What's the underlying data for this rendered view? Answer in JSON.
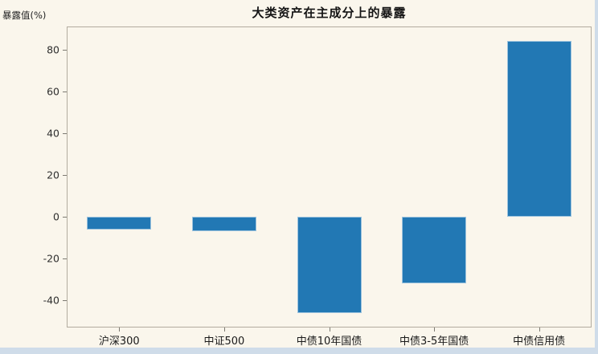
{
  "chart_data": {
    "type": "bar",
    "title": "大类资产在主成分上的暴露",
    "ylabel": "暴露值(%)",
    "xlabel": "",
    "categories": [
      "沪深300",
      "中证500",
      "中债10年国债",
      "中债3-5年国债",
      "中债信用债"
    ],
    "values": [
      -6,
      -7,
      -46,
      -32,
      84
    ],
    "yticks": [
      80,
      60,
      40,
      20,
      0,
      -20,
      -40
    ],
    "ylim": [
      -53,
      91
    ],
    "grid": false,
    "legend": null,
    "bar_color": "#2278b4",
    "bar_edge_color": "#9cc3de"
  },
  "colors": {
    "background": "#faf6ec",
    "plot_border": "#b2ac9f",
    "tick": "#7d7a72",
    "title_text": "#141414",
    "tick_text": "#2e2e2e",
    "window_edge": "#cfdce9"
  }
}
